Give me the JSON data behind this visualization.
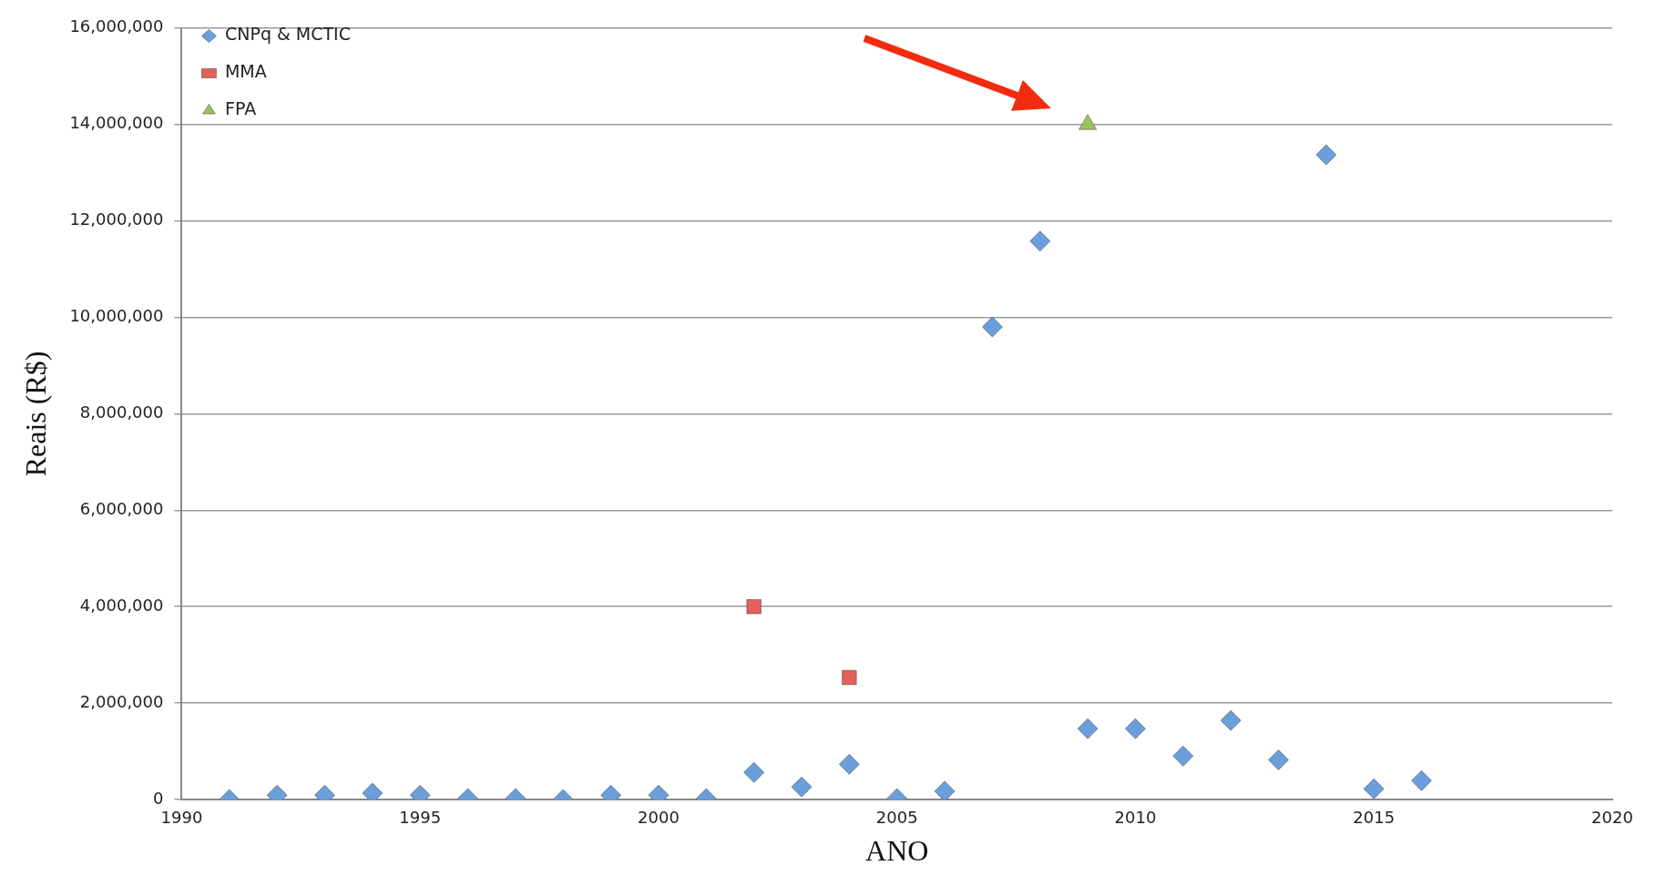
{
  "chart_data": {
    "type": "scatter",
    "xlabel": "ANO",
    "ylabel": "Reais (R$)",
    "xlim": [
      1990,
      2020
    ],
    "xticks": [
      1990,
      1995,
      2000,
      2005,
      2010,
      2015,
      2020
    ],
    "ylim": [
      0,
      16000000
    ],
    "yticks": [
      0,
      {
        "value": 2000000,
        "label": "2,000,000"
      },
      {
        "value": 4000000,
        "label": "4,000,000"
      },
      {
        "value": 6000000,
        "label": "6,000,000"
      },
      {
        "value": 8000000,
        "label": "8,000,000"
      },
      {
        "value": 10000000,
        "label": "10,000,000"
      },
      {
        "value": 12000000,
        "label": "12,000,000"
      },
      {
        "value": 14000000,
        "label": "14,000,000"
      },
      {
        "value": 16000000,
        "label": "16,000,000"
      }
    ],
    "grid": "y",
    "legend": "top left",
    "series": [
      {
        "name": "CNPq & MCTIC",
        "color": "#6a9fdc",
        "marker": "diamond",
        "x": [
          1991,
          1992,
          1993,
          1994,
          1995,
          1996,
          1997,
          1998,
          1999,
          2000,
          2001,
          2002,
          2003,
          2004,
          2005,
          2006,
          2007,
          2008,
          2009,
          2010,
          2011,
          2012,
          2013,
          2014,
          2015,
          2016
        ],
        "values": [
          0,
          90000,
          90000,
          130000,
          90000,
          20000,
          20000,
          0,
          90000,
          90000,
          20000,
          560000,
          260000,
          730000,
          20000,
          170000,
          9800000,
          11580000,
          1470000,
          1470000,
          900000,
          1640000,
          820000,
          13370000,
          220000,
          390000
        ]
      },
      {
        "name": "MMA",
        "color": "#e2615a",
        "marker": "square",
        "x": [
          2002,
          2004
        ],
        "values": [
          4000000,
          2530000
        ]
      },
      {
        "name": "FPA",
        "color": "#9bc45a",
        "marker": "triangle",
        "x": [
          2009
        ],
        "values": [
          14000000
        ]
      }
    ]
  }
}
